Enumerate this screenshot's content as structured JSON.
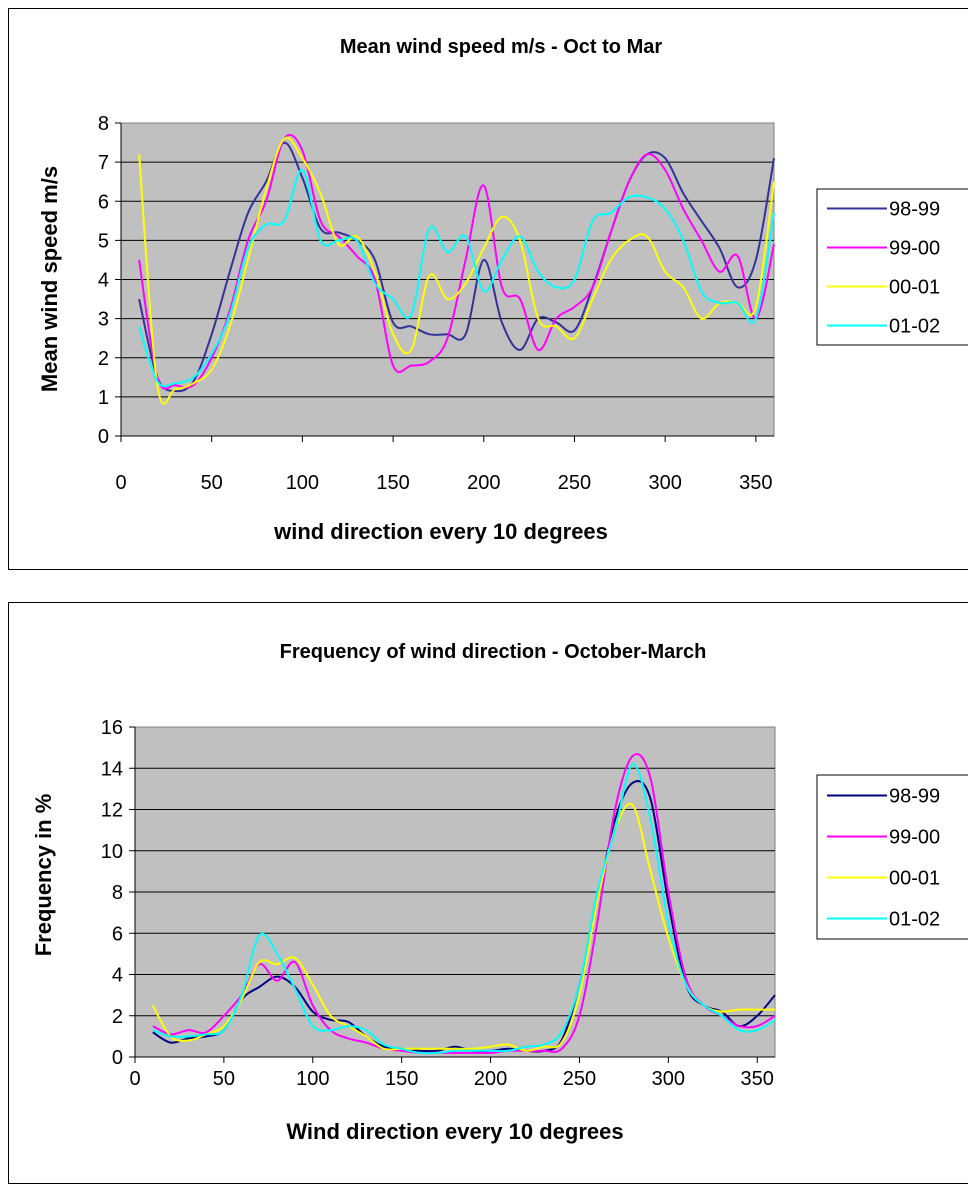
{
  "charts": {
    "speed": {
      "title": "Mean wind speed m/s - Oct to Mar",
      "xlabel": "wind direction every 10 degrees",
      "ylabel": "Mean wind speed m/s"
    },
    "freq": {
      "title": "Frequency of wind direction - October-March",
      "xlabel": "Wind direction every 10 degrees",
      "ylabel": "Frequency in %"
    }
  },
  "chart_data": [
    {
      "type": "line",
      "title": "Mean wind speed m/s - Oct to Mar",
      "xlabel": "wind direction every 10 degrees",
      "ylabel": "Mean wind speed m/s",
      "xlim": [
        0,
        360
      ],
      "ylim": [
        0,
        8
      ],
      "xticks": [
        0,
        50,
        100,
        150,
        200,
        250,
        300,
        350
      ],
      "yticks": [
        0,
        1,
        2,
        3,
        4,
        5,
        6,
        7,
        8
      ],
      "grid": "horizontal",
      "plot_background": "#c0c0c0",
      "legend": "right",
      "x": [
        10,
        20,
        30,
        40,
        50,
        60,
        70,
        80,
        90,
        100,
        110,
        120,
        130,
        140,
        150,
        160,
        170,
        180,
        190,
        200,
        210,
        220,
        230,
        240,
        250,
        260,
        270,
        280,
        290,
        300,
        310,
        320,
        330,
        340,
        350,
        360
      ],
      "series": [
        {
          "name": "98-99",
          "color": "#333399",
          "values": [
            3.5,
            1.5,
            1.15,
            1.4,
            2.6,
            4.2,
            5.7,
            6.5,
            7.5,
            6.6,
            5.3,
            5.2,
            5.0,
            4.5,
            2.9,
            2.8,
            2.6,
            2.6,
            2.6,
            4.5,
            2.9,
            2.2,
            3.0,
            2.9,
            2.7,
            3.8,
            5.2,
            6.5,
            7.2,
            7.1,
            6.2,
            5.5,
            4.8,
            3.8,
            4.5,
            7.1
          ]
        },
        {
          "name": "99-00",
          "color": "#ff00ff",
          "values": [
            4.5,
            1.5,
            1.3,
            1.3,
            2.0,
            3.2,
            5.0,
            6.0,
            7.6,
            7.3,
            5.5,
            5.1,
            4.6,
            4.0,
            1.8,
            1.8,
            1.9,
            2.5,
            4.5,
            6.4,
            3.8,
            3.5,
            2.2,
            3.0,
            3.3,
            3.8,
            5.2,
            6.5,
            7.2,
            6.8,
            5.8,
            5.0,
            4.2,
            4.6,
            3.0,
            4.9
          ]
        },
        {
          "name": "00-01",
          "color": "#ffff00",
          "values": [
            7.2,
            1.3,
            1.2,
            1.35,
            1.7,
            2.8,
            4.5,
            6.3,
            7.6,
            7.1,
            6.2,
            4.9,
            5.1,
            4.2,
            2.6,
            2.2,
            4.1,
            3.5,
            3.9,
            4.8,
            5.6,
            5.0,
            3.0,
            2.8,
            2.5,
            3.5,
            4.5,
            5.0,
            5.1,
            4.2,
            3.8,
            3.0,
            3.4,
            3.4,
            3.3,
            6.5
          ]
        },
        {
          "name": "01-02",
          "color": "#00ffff",
          "values": [
            2.8,
            1.4,
            1.35,
            1.5,
            2.1,
            3.1,
            4.8,
            5.4,
            5.5,
            6.8,
            5.0,
            5.0,
            5.0,
            3.9,
            3.5,
            3.1,
            5.3,
            4.7,
            5.1,
            3.7,
            4.5,
            5.1,
            4.2,
            3.8,
            4.0,
            5.5,
            5.7,
            6.1,
            6.1,
            5.8,
            5.0,
            3.7,
            3.4,
            3.4,
            3.0,
            5.7
          ]
        }
      ]
    },
    {
      "type": "line",
      "title": "Frequency of wind direction - October-March",
      "xlabel": "Wind direction every 10 degrees",
      "ylabel": "Frequency in %",
      "xlim": [
        0,
        360
      ],
      "ylim": [
        0,
        16
      ],
      "xticks": [
        0,
        50,
        100,
        150,
        200,
        250,
        300,
        350
      ],
      "yticks": [
        0,
        2,
        4,
        6,
        8,
        10,
        12,
        14,
        16
      ],
      "grid": "horizontal",
      "plot_background": "#c0c0c0",
      "legend": "right",
      "x": [
        10,
        20,
        30,
        40,
        50,
        60,
        70,
        80,
        90,
        100,
        110,
        120,
        130,
        140,
        150,
        160,
        170,
        180,
        190,
        200,
        210,
        220,
        230,
        240,
        250,
        260,
        270,
        280,
        290,
        300,
        310,
        320,
        330,
        340,
        350,
        360
      ],
      "series": [
        {
          "name": "98-99",
          "color": "#000080",
          "values": [
            1.2,
            0.7,
            0.9,
            1.0,
            1.3,
            2.8,
            3.4,
            3.9,
            3.4,
            2.2,
            1.8,
            1.7,
            1.0,
            0.5,
            0.4,
            0.3,
            0.3,
            0.5,
            0.3,
            0.3,
            0.4,
            0.3,
            0.3,
            0.8,
            3.5,
            7.5,
            11.5,
            13.3,
            12.5,
            7.5,
            3.5,
            2.5,
            2.2,
            1.5,
            2.0,
            3.0
          ]
        },
        {
          "name": "99-00",
          "color": "#ff00ff",
          "values": [
            1.5,
            1.1,
            1.3,
            1.2,
            2.0,
            3.0,
            4.5,
            3.7,
            4.6,
            2.5,
            1.3,
            0.9,
            0.7,
            0.4,
            0.3,
            0.2,
            0.2,
            0.2,
            0.2,
            0.2,
            0.3,
            0.3,
            0.3,
            0.4,
            2.0,
            6.5,
            12.0,
            14.6,
            13.5,
            8.0,
            3.8,
            2.5,
            2.0,
            1.5,
            1.5,
            2.0
          ]
        },
        {
          "name": "00-01",
          "color": "#ffff00",
          "values": [
            2.5,
            1.0,
            0.8,
            1.1,
            1.5,
            2.8,
            4.6,
            4.5,
            4.8,
            3.5,
            2.0,
            1.5,
            1.0,
            0.4,
            0.4,
            0.4,
            0.4,
            0.4,
            0.4,
            0.5,
            0.6,
            0.3,
            0.5,
            0.7,
            3.0,
            7.5,
            11.0,
            12.2,
            9.0,
            5.8,
            3.5,
            2.5,
            2.2,
            2.3,
            2.3,
            2.3
          ]
        },
        {
          "name": "01-02",
          "color": "#00ffff",
          "values": [
            1.3,
            1.0,
            1.0,
            1.1,
            1.3,
            3.0,
            5.9,
            5.0,
            3.3,
            1.5,
            1.3,
            1.5,
            1.3,
            0.6,
            0.4,
            0.2,
            0.2,
            0.3,
            0.3,
            0.3,
            0.3,
            0.5,
            0.6,
            1.2,
            3.5,
            8.0,
            11.0,
            14.2,
            11.5,
            6.5,
            3.5,
            2.5,
            2.0,
            1.3,
            1.3,
            1.8
          ]
        }
      ]
    }
  ]
}
